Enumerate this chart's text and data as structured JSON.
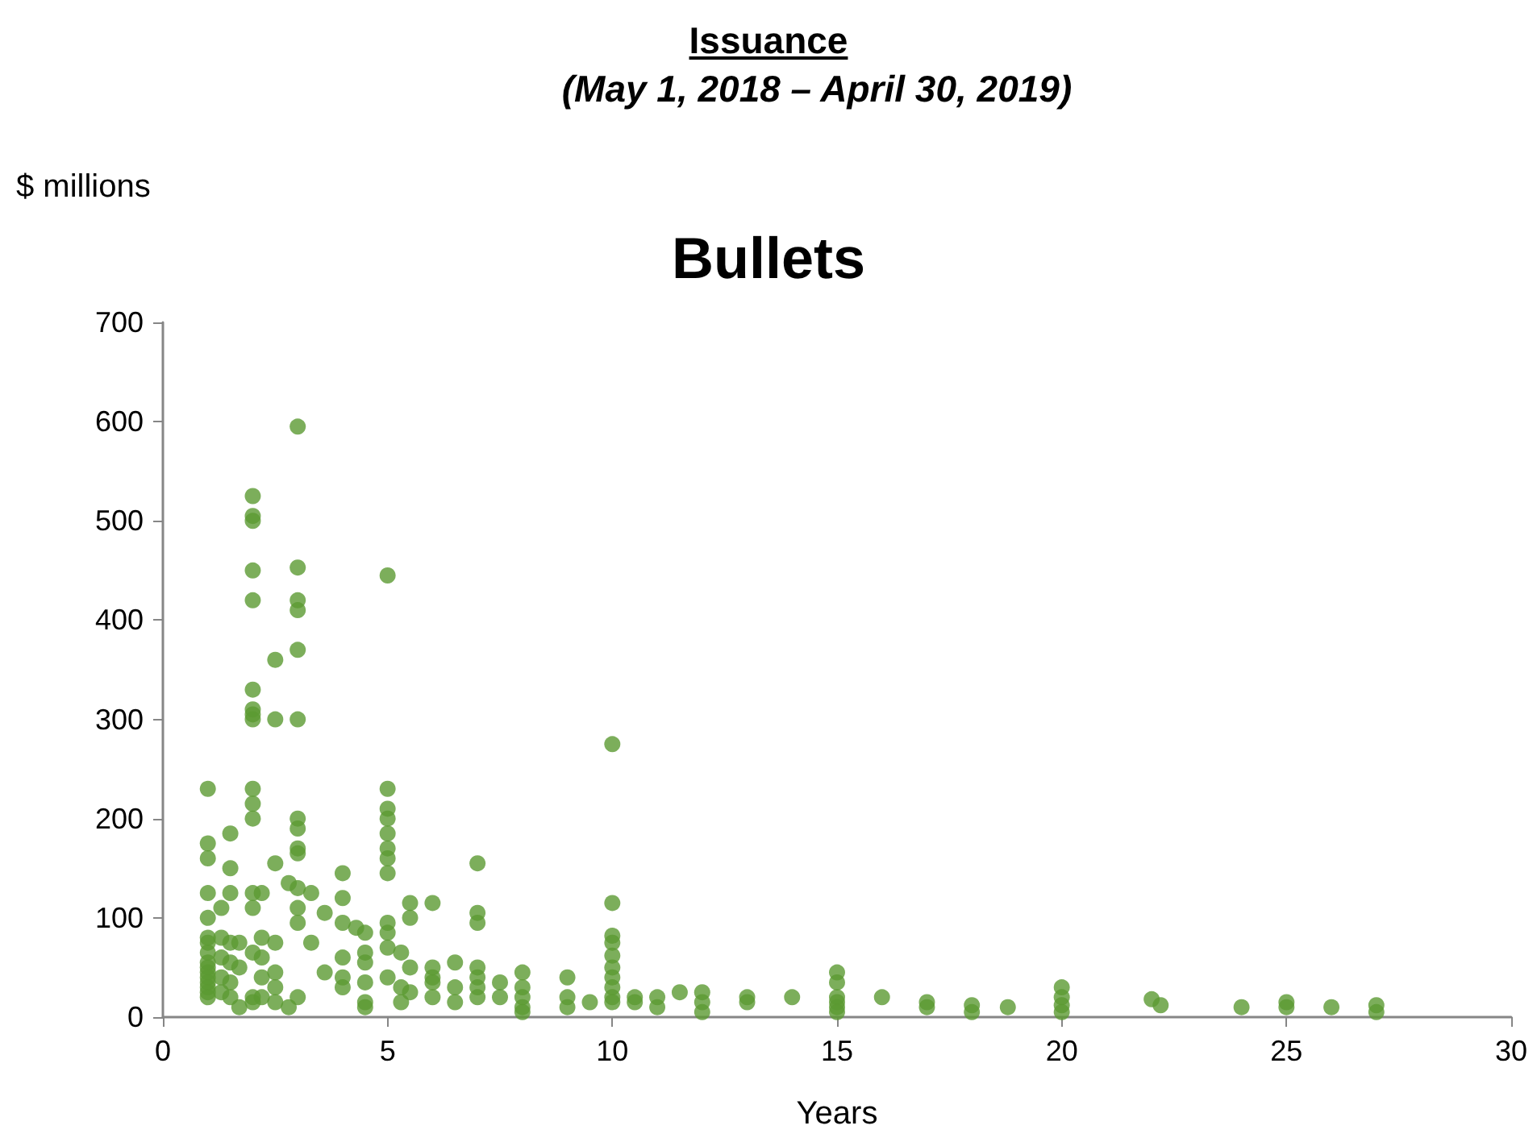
{
  "chart_data": {
    "type": "scatter",
    "title": "Issuance",
    "subtitle": "(May 1, 2018 – April 30, 2019)",
    "annotations": [
      "Bullets"
    ],
    "ylabel": "$ millions",
    "xlabel": "Years",
    "xlim": [
      0,
      30
    ],
    "xticks": [
      0,
      5,
      10,
      15,
      20,
      25,
      30
    ],
    "ylim": [
      0,
      700
    ],
    "yticks": [
      0,
      100,
      200,
      300,
      400,
      500,
      600,
      700
    ],
    "grid": false,
    "marker": "circle",
    "series": [
      {
        "color": "#5b9a32",
        "x": [
          1,
          1,
          1,
          1,
          1,
          1,
          1,
          1,
          1,
          1,
          1,
          1,
          1,
          1,
          1,
          1,
          1.3,
          1.3,
          1.3,
          1.3,
          1.3,
          1.5,
          1.5,
          1.5,
          1.5,
          1.5,
          1.5,
          1.5,
          1.7,
          1.7,
          1.7,
          2,
          2,
          2,
          2,
          2,
          2,
          2,
          2,
          2,
          2,
          2,
          2,
          2,
          2,
          2,
          2,
          2,
          2.2,
          2.2,
          2.2,
          2.2,
          2.2,
          2.5,
          2.5,
          2.5,
          2.5,
          2.5,
          2.5,
          2.5,
          3,
          3,
          3,
          3,
          3,
          3,
          3,
          3,
          3,
          3,
          3,
          3,
          3,
          3,
          2.8,
          2.8,
          3.3,
          3.3,
          3.6,
          3.6,
          4,
          4,
          4,
          4,
          4,
          4,
          4.3,
          4.5,
          4.5,
          4.5,
          4.5,
          4.5,
          4.5,
          5,
          5,
          5,
          5,
          5,
          5,
          5,
          5,
          5,
          5,
          5,
          5,
          5.3,
          5.3,
          5.3,
          5.5,
          5.5,
          5.5,
          5.5,
          6,
          6,
          6,
          6,
          6,
          6.5,
          6.5,
          6.5,
          7,
          7,
          7,
          7,
          7,
          7,
          7,
          7.5,
          7.5,
          8,
          8,
          8,
          8,
          8,
          9,
          9,
          9,
          9.5,
          10,
          10,
          10,
          10,
          10,
          10,
          10,
          10,
          10,
          10,
          10.5,
          10.5,
          11,
          11,
          11.5,
          12,
          12,
          12,
          13,
          13,
          14,
          15,
          15,
          15,
          15,
          15,
          15,
          16,
          17,
          17,
          18,
          18,
          18.8,
          20,
          20,
          20,
          20,
          22,
          22.2,
          24,
          25,
          25,
          26,
          27,
          27
        ],
        "values": [
          230,
          175,
          160,
          125,
          100,
          80,
          75,
          65,
          55,
          50,
          45,
          40,
          35,
          30,
          25,
          20,
          110,
          80,
          60,
          40,
          25,
          185,
          150,
          125,
          75,
          55,
          35,
          20,
          75,
          10,
          50,
          525,
          505,
          500,
          450,
          420,
          330,
          310,
          305,
          300,
          230,
          215,
          200,
          125,
          110,
          65,
          20,
          15,
          125,
          80,
          60,
          40,
          20,
          360,
          300,
          155,
          75,
          45,
          30,
          15,
          595,
          453,
          420,
          410,
          370,
          300,
          200,
          190,
          170,
          165,
          130,
          110,
          20,
          95,
          135,
          10,
          125,
          75,
          45,
          105,
          145,
          120,
          95,
          60,
          40,
          30,
          90,
          85,
          65,
          55,
          35,
          15,
          10,
          445,
          230,
          210,
          200,
          185,
          170,
          160,
          145,
          95,
          85,
          70,
          40,
          65,
          30,
          15,
          115,
          100,
          50,
          25,
          115,
          50,
          35,
          20,
          40,
          55,
          30,
          15,
          155,
          105,
          95,
          50,
          40,
          30,
          20,
          35,
          20,
          45,
          30,
          20,
          10,
          5,
          40,
          20,
          10,
          15,
          275,
          115,
          82,
          75,
          62,
          50,
          40,
          30,
          20,
          15,
          20,
          15,
          20,
          10,
          25,
          25,
          15,
          5,
          20,
          15,
          20,
          45,
          35,
          20,
          15,
          10,
          5,
          20,
          15,
          10,
          12,
          5,
          10,
          30,
          20,
          12,
          5,
          18,
          12,
          10,
          15,
          10,
          10,
          12,
          5
        ]
      }
    ]
  }
}
